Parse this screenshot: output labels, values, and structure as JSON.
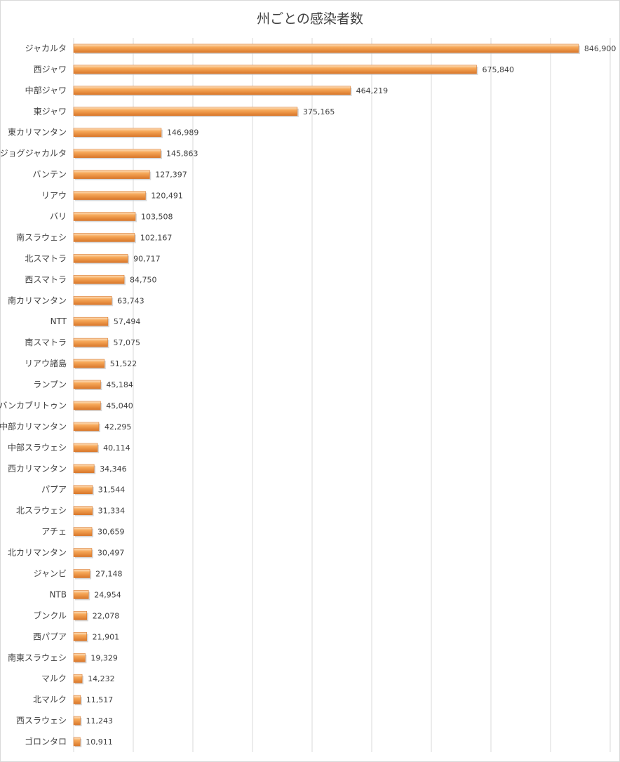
{
  "chart_data": {
    "type": "bar",
    "orientation": "horizontal",
    "title": "州ごとの感染者数",
    "xlabel": "",
    "ylabel": "",
    "xlim": [
      0,
      900000
    ],
    "grid": true,
    "legend": "none",
    "colors": {
      "bar_light": "#fde3c4",
      "bar_mid": "#f7a95a",
      "bar_dark": "#d9772a",
      "grid": "#d9d9d9",
      "text": "#404040"
    },
    "categories": [
      "ジャカルタ",
      "西ジャワ",
      "中部ジャワ",
      "東ジャワ",
      "東カリマンタン",
      "ジョグジャカルタ",
      "バンテン",
      "リアウ",
      "バリ",
      "南スラウェシ",
      "北スマトラ",
      "西スマトラ",
      "南カリマンタン",
      "NTT",
      "南スマトラ",
      "リアウ諸島",
      "ランプン",
      "バンカブリトゥン",
      "中部カリマンタン",
      "中部スラウェシ",
      "西カリマンタン",
      "パプア",
      "北スラウェシ",
      "アチェ",
      "北カリマンタン",
      "ジャンビ",
      "NTB",
      "ブンクル",
      "西パプア",
      "南東スラウェシ",
      "マルク",
      "北マルク",
      "西スラウェシ",
      "ゴロンタロ"
    ],
    "values": [
      846900,
      675840,
      464219,
      375165,
      146989,
      145863,
      127397,
      120491,
      103508,
      102167,
      90717,
      84750,
      63743,
      57494,
      57075,
      51522,
      45184,
      45040,
      42295,
      40114,
      34346,
      31544,
      31334,
      30659,
      30497,
      27148,
      24954,
      22078,
      21901,
      19329,
      14232,
      11517,
      11243,
      10911
    ],
    "labels": [
      "846,900",
      "675,840",
      "464,219",
      "375,165",
      "146,989",
      "145,863",
      "127,397",
      "120,491",
      "103,508",
      "102,167",
      "90,717",
      "84,750",
      "63,743",
      "57,494",
      "57,075",
      "51,522",
      "45,184",
      "45,040",
      "42,295",
      "40,114",
      "34,346",
      "31,544",
      "31,334",
      "30,659",
      "30,497",
      "27,148",
      "24,954",
      "22,078",
      "21,901",
      "19,329",
      "14,232",
      "11,517",
      "11,243",
      "10,911"
    ]
  }
}
